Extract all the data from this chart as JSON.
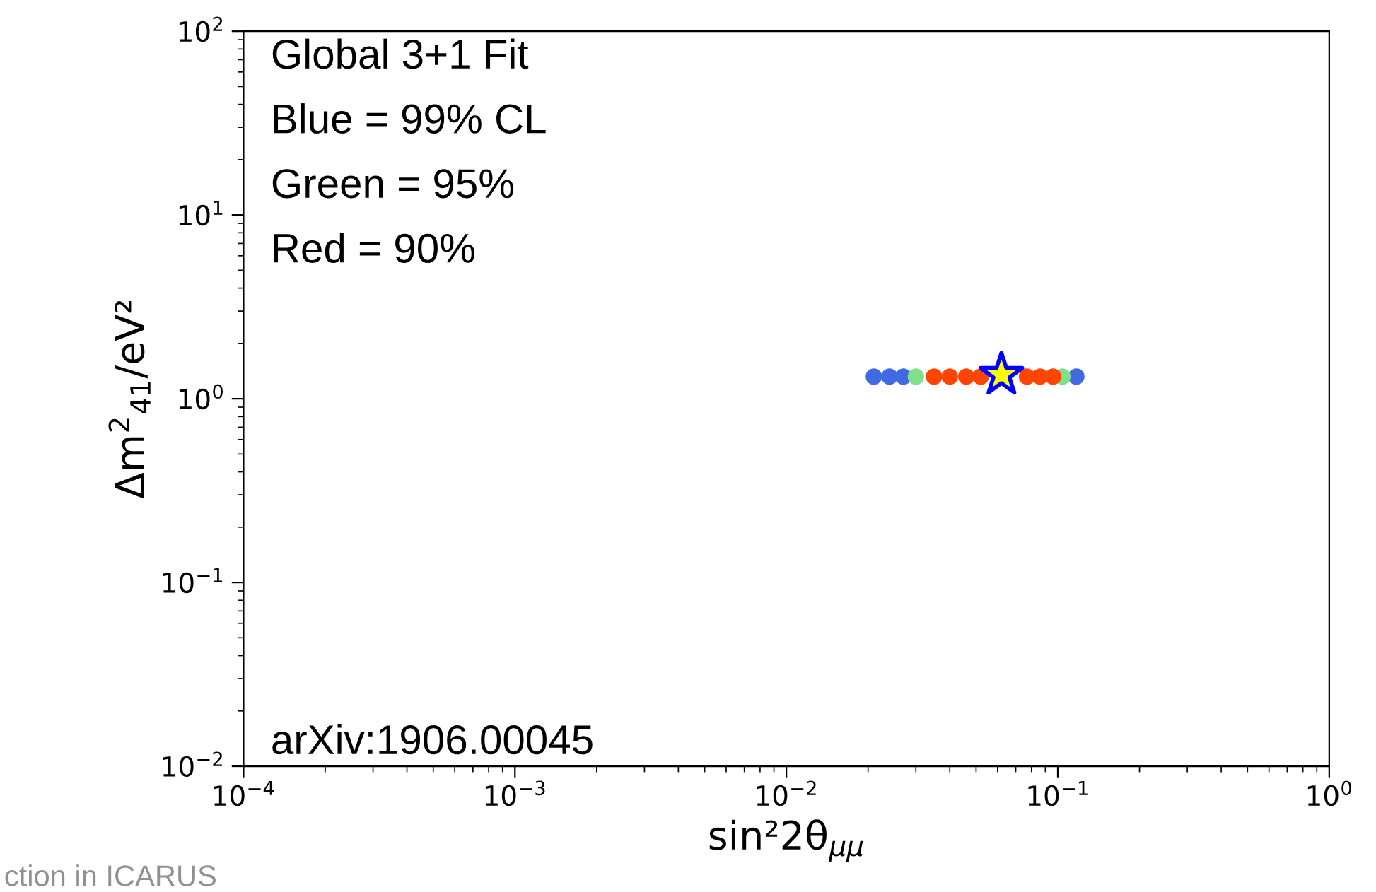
{
  "chart_data": {
    "type": "scatter",
    "xlabel": "sin²2θ$_{μμ}$",
    "ylabel": "Δm$^{2}$$_{41}$/eV²",
    "log": "xy",
    "xlim": [
      0.0001,
      1
    ],
    "ylim": [
      0.01,
      100
    ],
    "xticks": [
      {
        "value": 0.0001,
        "label": "10$^{−4}$"
      },
      {
        "value": 0.001,
        "label": "10$^{−3}$"
      },
      {
        "value": 0.01,
        "label": "10$^{−2}$"
      },
      {
        "value": 0.1,
        "label": "10$^{−1}$"
      },
      {
        "value": 1,
        "label": "10$^{0}$"
      }
    ],
    "yticks": [
      {
        "value": 0.01,
        "label": "10$^{−2}$"
      },
      {
        "value": 0.1,
        "label": "10$^{−1}$"
      },
      {
        "value": 1,
        "label": "10$^{0}$"
      },
      {
        "value": 10,
        "label": "10$^{1}$"
      },
      {
        "value": 100,
        "label": "10$^{2}$"
      }
    ],
    "grid": false,
    "legend": false,
    "series": [
      {
        "color": "#4169e1",
        "marker": "circle",
        "x": [
          0.021,
          0.024,
          0.027,
          0.117
        ],
        "values": [
          1.32,
          1.32,
          1.32,
          1.32
        ]
      },
      {
        "color": "#7ee08a",
        "marker": "circle",
        "x": [
          0.03,
          0.104
        ],
        "values": [
          1.32,
          1.32
        ]
      },
      {
        "color": "#ff4500",
        "marker": "circle",
        "x": [
          0.035,
          0.04,
          0.046,
          0.052,
          0.077,
          0.086,
          0.096
        ],
        "values": [
          1.32,
          1.32,
          1.32,
          1.32,
          1.32,
          1.32,
          1.32
        ]
      },
      {
        "color": "#ffff00",
        "marker": "star",
        "x": [
          0.062
        ],
        "values": [
          1.35
        ]
      }
    ],
    "annotations": [
      "Global 3+1 Fit",
      "Blue = 99% CL",
      "Green = 95%",
      "Red = 90%",
      "arXiv:1906.00045",
      "ction in ICARUS"
    ]
  }
}
